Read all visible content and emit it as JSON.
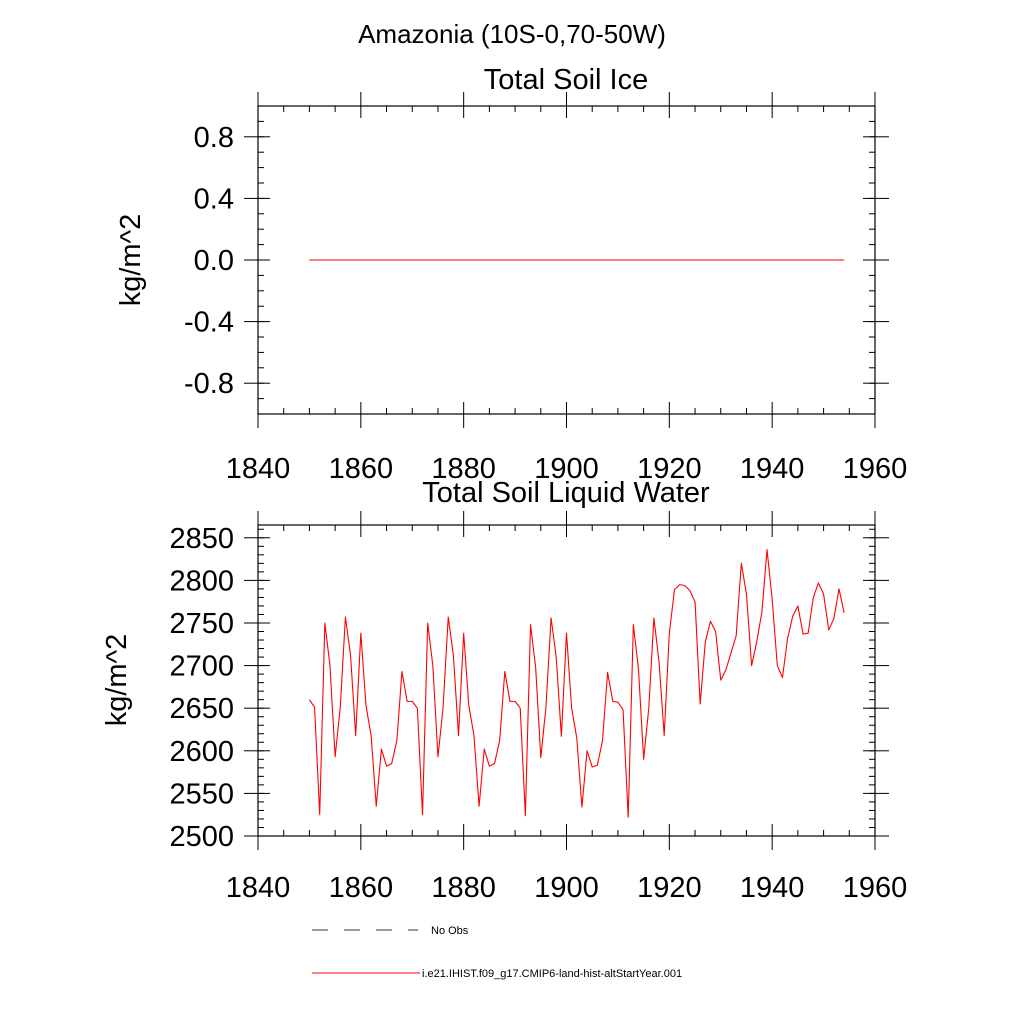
{
  "figure": {
    "region_title": "Amazonia (10S-0,70-50W)"
  },
  "chart_data": [
    {
      "type": "line",
      "title": "Total Soil Ice",
      "ylabel": "kg/m^2",
      "xlabel": "",
      "xlim": [
        1840,
        1960
      ],
      "ylim": [
        -1.0,
        1.0
      ],
      "x_ticks": [
        1840,
        1860,
        1880,
        1900,
        1920,
        1940,
        1960
      ],
      "y_ticks": [
        "-0.8",
        "-0.4",
        "0.0",
        "0.4",
        "0.8"
      ],
      "grid": false,
      "series": [
        {
          "name": "i.e21.IHIST.f09_g17.CMIP6-land-hist-altStartYear.001",
          "color": "#ff0000",
          "x": [
            1850,
            1954
          ],
          "y": [
            0.0,
            0.0
          ]
        }
      ]
    },
    {
      "type": "line",
      "title": "Total Soil Liquid Water",
      "ylabel": "kg/m^2",
      "xlabel": "",
      "xlim": [
        1840,
        1960
      ],
      "ylim": [
        2500,
        2865
      ],
      "x_ticks": [
        1840,
        1860,
        1880,
        1900,
        1920,
        1940,
        1960
      ],
      "y_ticks": [
        "2500",
        "2550",
        "2600",
        "2650",
        "2700",
        "2750",
        "2800",
        "2850"
      ],
      "grid": false,
      "series": [
        {
          "name": "i.e21.IHIST.f09_g17.CMIP6-land-hist-altStartYear.001",
          "color": "#ff0000",
          "x_start": 1850,
          "x_step": 1,
          "y": [
            2660,
            2651,
            2525,
            2750,
            2700,
            2593,
            2651,
            2757,
            2712,
            2618,
            2738,
            2653,
            2618,
            2535,
            2602,
            2582,
            2585,
            2612,
            2693,
            2658,
            2658,
            2650,
            2525,
            2750,
            2700,
            2593,
            2651,
            2757,
            2712,
            2618,
            2738,
            2653,
            2618,
            2535,
            2602,
            2582,
            2585,
            2612,
            2693,
            2658,
            2658,
            2650,
            2524,
            2748,
            2698,
            2592,
            2651,
            2756,
            2710,
            2617,
            2738,
            2650,
            2615,
            2534,
            2600,
            2581,
            2583,
            2612,
            2692,
            2658,
            2657,
            2648,
            2522,
            2748,
            2696,
            2590,
            2650,
            2756,
            2704,
            2618,
            2738,
            2789,
            2795,
            2794,
            2788,
            2775,
            2655,
            2728,
            2752,
            2740,
            2683,
            2695,
            2715,
            2735,
            2820,
            2784,
            2700,
            2728,
            2763,
            2836,
            2778,
            2700,
            2686,
            2732,
            2758,
            2770,
            2737,
            2738,
            2780,
            2797,
            2784,
            2742,
            2755,
            2790,
            2762
          ]
        }
      ]
    }
  ],
  "legend": {
    "placement": "bottom",
    "entries": [
      {
        "label": "No Obs",
        "style": "dashed",
        "color": "#2d2d6b"
      },
      {
        "label": "i.e21.IHIST.f09_g17.CMIP6-land-hist-altStartYear.001",
        "style": "solid",
        "color": "#ff0000"
      }
    ]
  }
}
